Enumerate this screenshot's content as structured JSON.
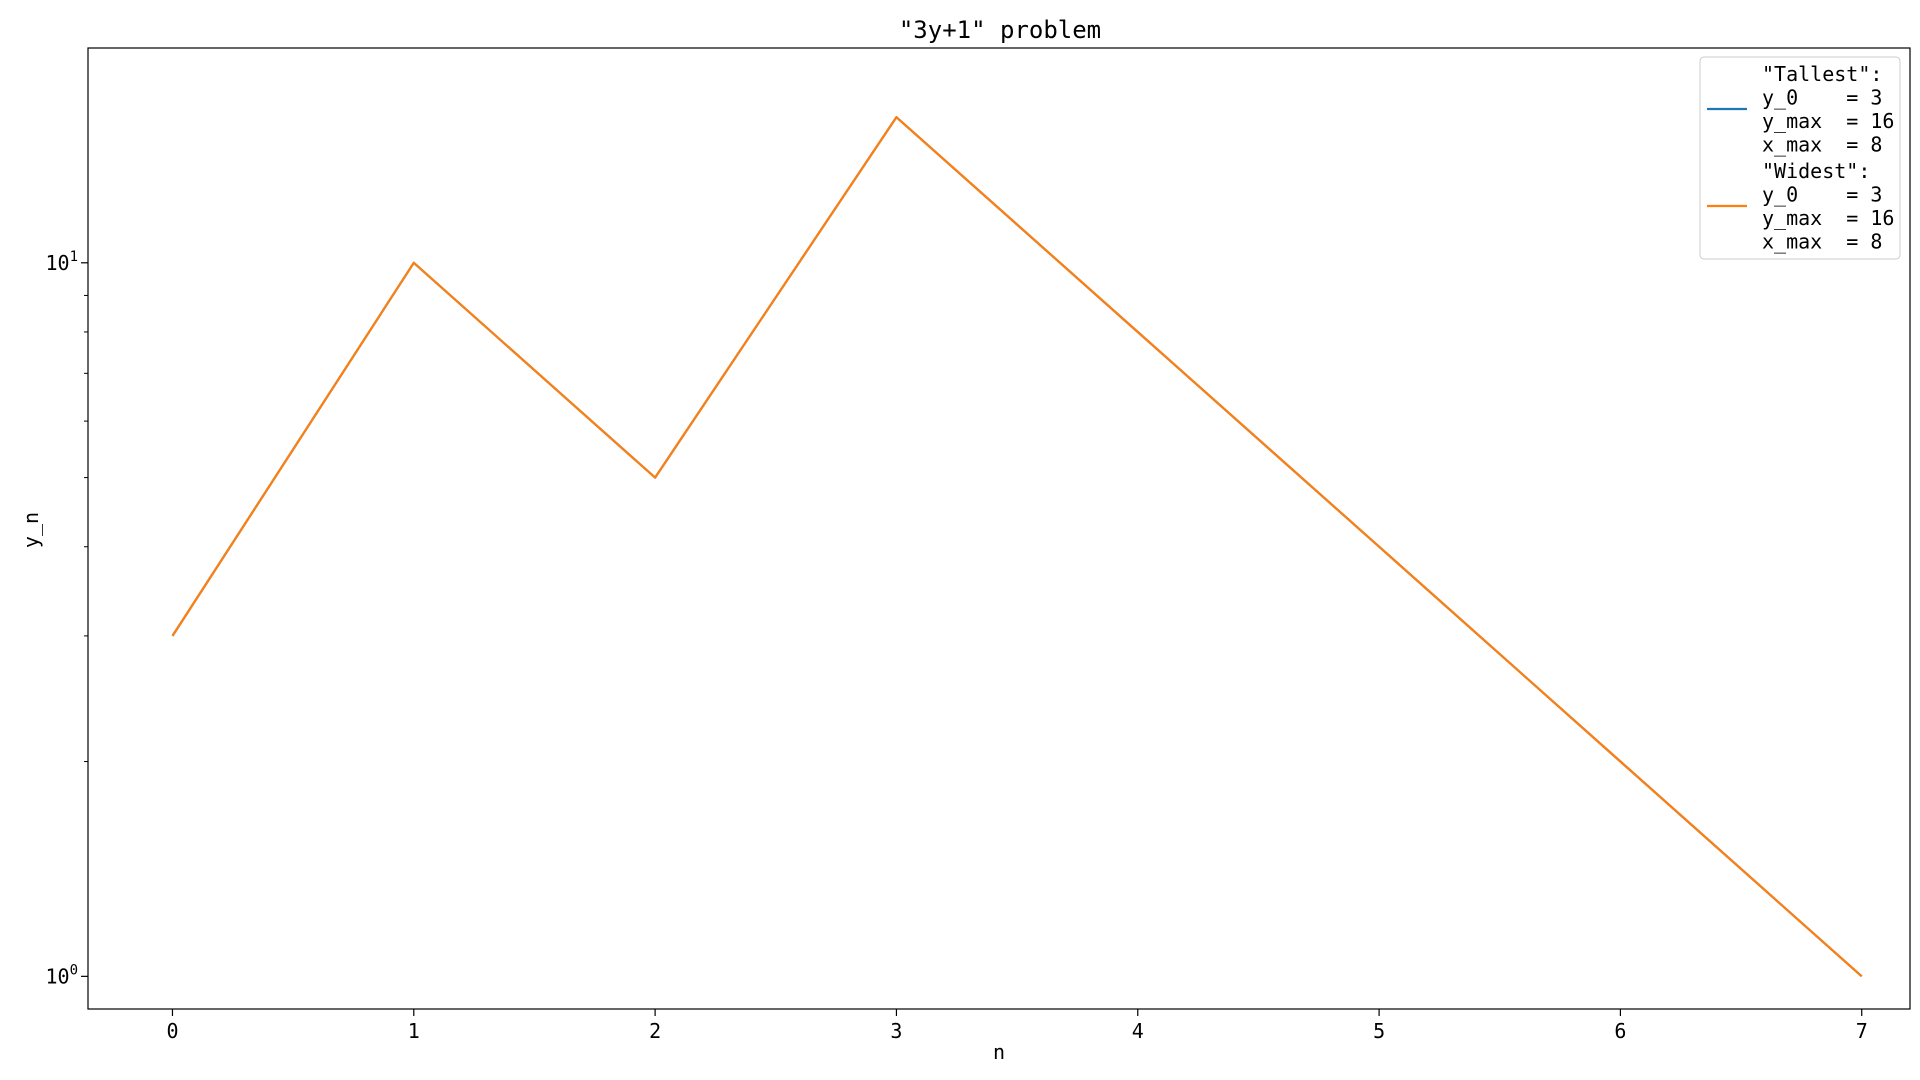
{
  "chart_data": {
    "type": "line",
    "title": "\"3y+1\" problem",
    "xlabel": "n",
    "ylabel": "y_n",
    "x": [
      0,
      1,
      2,
      3,
      4,
      5,
      6,
      7
    ],
    "x_ticks": [
      0,
      1,
      2,
      3,
      4,
      5,
      6,
      7
    ],
    "xlim": [
      -0.35,
      7.2
    ],
    "y_scale": "log",
    "ylim": [
      0.9,
      20
    ],
    "y_ticks": [
      {
        "value": 1,
        "base": "10",
        "exp": "0"
      },
      {
        "value": 10,
        "base": "10",
        "exp": "1"
      }
    ],
    "y_minor_ticks": [
      2,
      3,
      4,
      5,
      6,
      7,
      8,
      9
    ],
    "grid": false,
    "legend_position": "top-right",
    "series": [
      {
        "color": "#1f77b4",
        "values": [
          3,
          10,
          5,
          16,
          8,
          4,
          2,
          1
        ],
        "legend_lines": [
          "\"Tallest\":",
          "y_0    = 3",
          "y_max  = 16",
          "x_max  = 8"
        ]
      },
      {
        "color": "#ff7f0e",
        "values": [
          3,
          10,
          5,
          16,
          8,
          4,
          2,
          1
        ],
        "legend_lines": [
          "\"Widest\":",
          "y_0    = 3",
          "y_max  = 16",
          "x_max  = 8"
        ]
      }
    ]
  }
}
